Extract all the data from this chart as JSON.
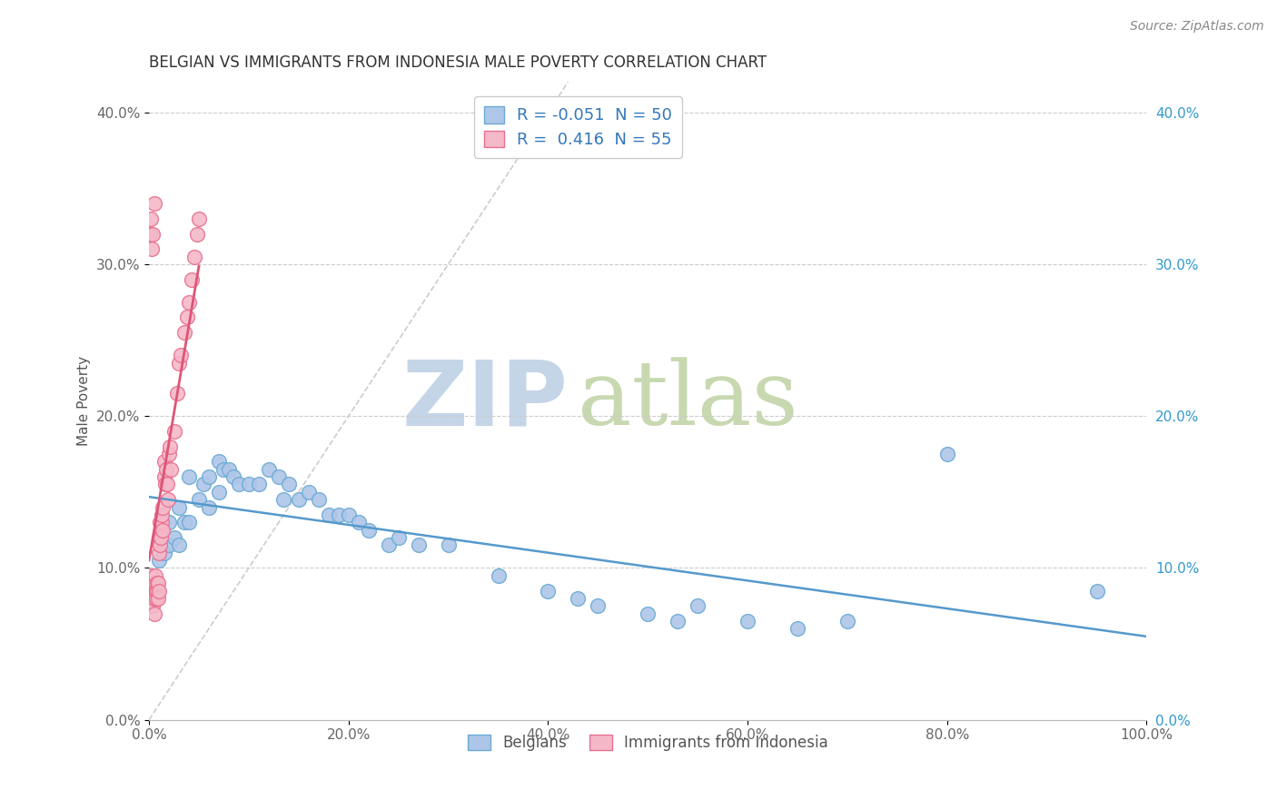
{
  "title": "BELGIAN VS IMMIGRANTS FROM INDONESIA MALE POVERTY CORRELATION CHART",
  "source_text": "Source: ZipAtlas.com",
  "ylabel": "Male Poverty",
  "xlim": [
    0,
    1.0
  ],
  "ylim": [
    0.0,
    0.42
  ],
  "xticks": [
    0.0,
    0.2,
    0.4,
    0.6,
    0.8,
    1.0
  ],
  "xtick_labels": [
    "0.0%",
    "20.0%",
    "40.0%",
    "60.0%",
    "80.0%",
    "100.0%"
  ],
  "yticks": [
    0.0,
    0.1,
    0.2,
    0.3,
    0.4
  ],
  "ytick_labels": [
    "0.0%",
    "10.0%",
    "20.0%",
    "30.0%",
    "40.0%"
  ],
  "legend_labels": [
    "Belgians",
    "Immigrants from Indonesia"
  ],
  "legend_R": [
    "-0.051",
    "0.416"
  ],
  "legend_N": [
    "50",
    "55"
  ],
  "blue_color": "#aec6e8",
  "pink_color": "#f5b8c8",
  "blue_edge_color": "#6aaad4",
  "pink_edge_color": "#e87090",
  "blue_line_color": "#5599cc",
  "pink_line_color": "#dd5577",
  "watermark_zip_color": "#c5d5e8",
  "watermark_atlas_color": "#c8d8b0",
  "title_fontsize": 12,
  "axis_label_fontsize": 11,
  "tick_fontsize": 11,
  "diag_line_color": "#cccccc",
  "grid_color": "#cccccc",
  "belgians_x": [
    0.01,
    0.015,
    0.02,
    0.02,
    0.025,
    0.03,
    0.03,
    0.035,
    0.04,
    0.04,
    0.05,
    0.055,
    0.06,
    0.06,
    0.07,
    0.07,
    0.075,
    0.08,
    0.085,
    0.09,
    0.1,
    0.11,
    0.12,
    0.13,
    0.135,
    0.14,
    0.15,
    0.16,
    0.17,
    0.18,
    0.19,
    0.2,
    0.21,
    0.22,
    0.24,
    0.25,
    0.27,
    0.3,
    0.35,
    0.4,
    0.43,
    0.45,
    0.5,
    0.53,
    0.55,
    0.6,
    0.65,
    0.7,
    0.8,
    0.95
  ],
  "belgians_y": [
    0.105,
    0.11,
    0.13,
    0.115,
    0.12,
    0.14,
    0.115,
    0.13,
    0.16,
    0.13,
    0.145,
    0.155,
    0.16,
    0.14,
    0.17,
    0.15,
    0.165,
    0.165,
    0.16,
    0.155,
    0.155,
    0.155,
    0.165,
    0.16,
    0.145,
    0.155,
    0.145,
    0.15,
    0.145,
    0.135,
    0.135,
    0.135,
    0.13,
    0.125,
    0.115,
    0.12,
    0.115,
    0.115,
    0.095,
    0.085,
    0.08,
    0.075,
    0.07,
    0.065,
    0.075,
    0.065,
    0.06,
    0.065,
    0.175,
    0.085
  ],
  "indonesia_x": [
    0.001,
    0.001,
    0.002,
    0.002,
    0.003,
    0.003,
    0.004,
    0.004,
    0.005,
    0.005,
    0.005,
    0.006,
    0.006,
    0.007,
    0.007,
    0.008,
    0.008,
    0.009,
    0.009,
    0.01,
    0.01,
    0.01,
    0.011,
    0.011,
    0.012,
    0.012,
    0.013,
    0.013,
    0.014,
    0.014,
    0.015,
    0.015,
    0.016,
    0.017,
    0.018,
    0.019,
    0.02,
    0.021,
    0.022,
    0.025,
    0.028,
    0.03,
    0.032,
    0.035,
    0.038,
    0.04,
    0.043,
    0.045,
    0.048,
    0.05,
    0.001,
    0.002,
    0.003,
    0.004,
    0.005
  ],
  "indonesia_y": [
    0.08,
    0.085,
    0.09,
    0.075,
    0.085,
    0.095,
    0.08,
    0.075,
    0.07,
    0.09,
    0.08,
    0.09,
    0.095,
    0.08,
    0.085,
    0.09,
    0.085,
    0.08,
    0.09,
    0.085,
    0.11,
    0.12,
    0.13,
    0.115,
    0.125,
    0.12,
    0.13,
    0.135,
    0.14,
    0.125,
    0.16,
    0.17,
    0.155,
    0.165,
    0.155,
    0.145,
    0.175,
    0.18,
    0.165,
    0.19,
    0.215,
    0.235,
    0.24,
    0.255,
    0.265,
    0.275,
    0.29,
    0.305,
    0.32,
    0.33,
    0.32,
    0.33,
    0.31,
    0.32,
    0.34
  ]
}
